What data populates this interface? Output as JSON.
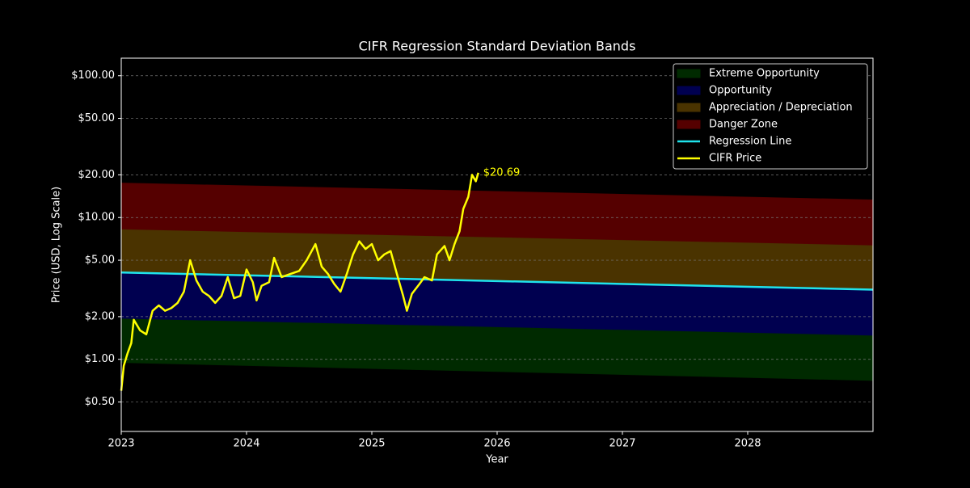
{
  "chart_data": {
    "type": "line",
    "title": "CIFR Regression Standard Deviation Bands",
    "x_label": "Year",
    "y_label": "Price (USD, Log Scale)",
    "log_y": true,
    "grid": true,
    "legend": "upper right",
    "xlim": [
      2023,
      2029
    ],
    "xticks": [
      2023,
      2024,
      2025,
      2026,
      2027,
      2028
    ],
    "ylim": [
      0.31,
      133
    ],
    "yticks": [
      {
        "value": 0.5,
        "label": "$0.50"
      },
      {
        "value": 1,
        "label": "$1.00"
      },
      {
        "value": 2,
        "label": "$2.00"
      },
      {
        "value": 5,
        "label": "$5.00"
      },
      {
        "value": 10,
        "label": "$10.00"
      },
      {
        "value": 20,
        "label": "$20.00"
      },
      {
        "value": 50,
        "label": "$50.00"
      },
      {
        "value": 100,
        "label": "$100.00"
      }
    ],
    "bands": [
      {
        "name": "Extreme Opportunity",
        "color": "#002a00",
        "x": [
          2023,
          2029
        ],
        "lower": [
          0.95,
          0.71
        ],
        "upper": [
          1.95,
          1.48
        ]
      },
      {
        "name": "Opportunity",
        "color": "#000050",
        "x": [
          2023,
          2029
        ],
        "lower": [
          1.95,
          1.48
        ],
        "upper": [
          4.1,
          3.1
        ]
      },
      {
        "name": "Appreciation / Depreciation",
        "color": "#4a3300",
        "x": [
          2023,
          2029
        ],
        "lower": [
          4.1,
          3.1
        ],
        "upper": [
          8.3,
          6.4
        ]
      },
      {
        "name": "Danger Zone",
        "color": "#550000",
        "x": [
          2023,
          2029
        ],
        "lower": [
          8.3,
          6.4
        ],
        "upper": [
          17.5,
          13.3
        ]
      }
    ],
    "series": [
      {
        "name": "Regression Line",
        "color": "#1fe3ec",
        "x": [
          2023,
          2029
        ],
        "values": [
          4.1,
          3.1
        ]
      },
      {
        "name": "CIFR Price",
        "color": "#ffff00",
        "x": [
          2023.0,
          2023.02,
          2023.05,
          2023.08,
          2023.1,
          2023.15,
          2023.2,
          2023.25,
          2023.3,
          2023.35,
          2023.4,
          2023.45,
          2023.5,
          2023.55,
          2023.6,
          2023.65,
          2023.7,
          2023.75,
          2023.8,
          2023.85,
          2023.9,
          2023.95,
          2024.0,
          2024.05,
          2024.08,
          2024.12,
          2024.18,
          2024.22,
          2024.28,
          2024.35,
          2024.42,
          2024.48,
          2024.55,
          2024.6,
          2024.65,
          2024.7,
          2024.75,
          2024.8,
          2024.85,
          2024.9,
          2024.95,
          2025.0,
          2025.05,
          2025.1,
          2025.15,
          2025.2,
          2025.25,
          2025.28,
          2025.32,
          2025.38,
          2025.42,
          2025.48,
          2025.52,
          2025.58,
          2025.62,
          2025.66,
          2025.7,
          2025.73,
          2025.77,
          2025.8,
          2025.83,
          2025.85
        ],
        "values": [
          0.6,
          0.9,
          1.1,
          1.3,
          1.9,
          1.6,
          1.5,
          2.2,
          2.4,
          2.2,
          2.3,
          2.5,
          3.0,
          5.0,
          3.6,
          3.0,
          2.8,
          2.5,
          2.8,
          3.8,
          2.7,
          2.8,
          4.3,
          3.5,
          2.6,
          3.3,
          3.5,
          5.2,
          3.8,
          4.0,
          4.2,
          5.0,
          6.5,
          4.5,
          4.0,
          3.4,
          3.0,
          4.0,
          5.5,
          6.8,
          6.0,
          6.5,
          5.0,
          5.5,
          5.8,
          4.0,
          2.8,
          2.2,
          2.9,
          3.4,
          3.8,
          3.6,
          5.5,
          6.3,
          5.0,
          6.5,
          8.0,
          11.5,
          14,
          20,
          18,
          20.69
        ]
      }
    ],
    "annotation": "$20.69"
  }
}
